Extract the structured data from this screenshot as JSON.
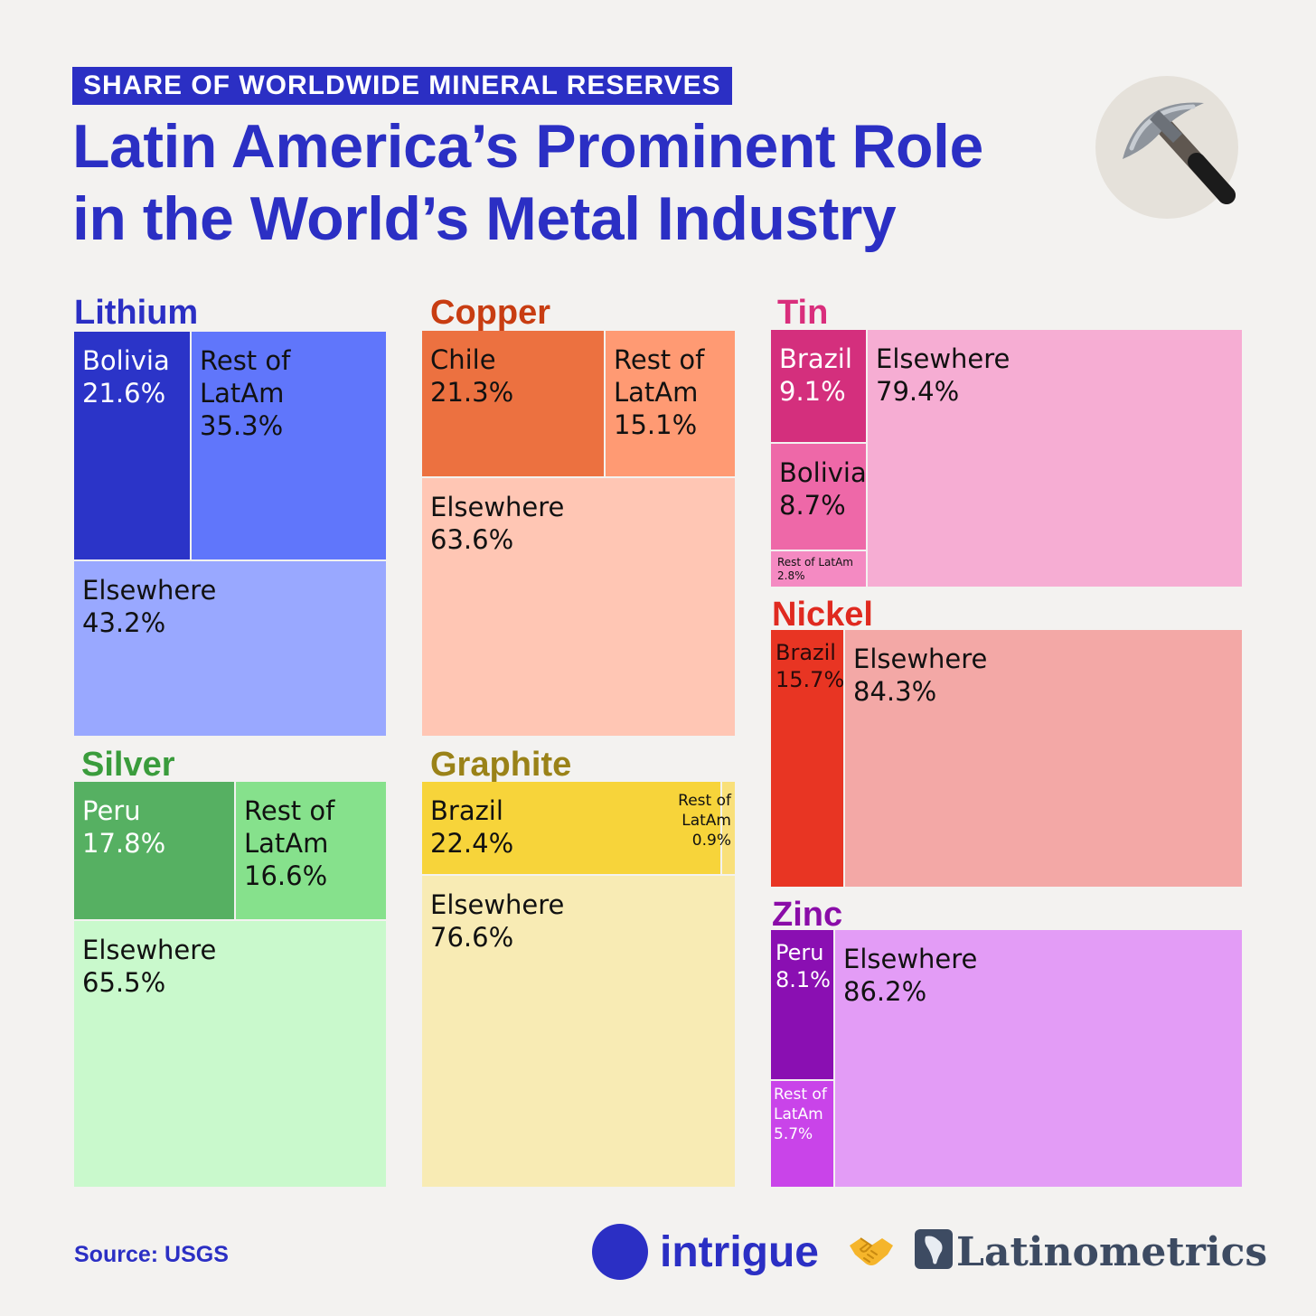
{
  "header": {
    "kicker": "SHARE OF WORLDWIDE MINERAL RESERVES",
    "title_line1": "Latin America’s Prominent Role",
    "title_line2": "in the World’s Metal Industry",
    "badge_icon": "pickaxe-icon"
  },
  "chart_data": [
    {
      "type": "treemap",
      "title": "Lithium",
      "title_color": "#2b2fc4",
      "cells": [
        {
          "label": "Bolivia",
          "value": 21.6,
          "display": "21.6%",
          "color": "#2b34c8"
        },
        {
          "label": "Rest of LatAm",
          "value": 35.3,
          "display": "35.3%",
          "color": "#6076fb"
        },
        {
          "label": "Elsewhere",
          "value": 43.2,
          "display": "43.2%",
          "color": "#99a8ff"
        }
      ]
    },
    {
      "type": "treemap",
      "title": "Copper",
      "title_color": "#c83d12",
      "cells": [
        {
          "label": "Chile",
          "value": 21.3,
          "display": "21.3%",
          "color": "#ec7140"
        },
        {
          "label": "Rest of LatAm",
          "value": 15.1,
          "display": "15.1%",
          "color": "#ff9a73"
        },
        {
          "label": "Elsewhere",
          "value": 63.6,
          "display": "63.6%",
          "color": "#ffc6b4"
        }
      ]
    },
    {
      "type": "treemap",
      "title": "Tin",
      "title_color": "#d92e7c",
      "cells": [
        {
          "label": "Brazil",
          "value": 9.1,
          "display": "9.1%",
          "color": "#d42f7d"
        },
        {
          "label": "Bolivia",
          "value": 8.7,
          "display": "8.7%",
          "color": "#ee68a8"
        },
        {
          "label": "Rest of LatAm",
          "value": 2.8,
          "display": "2.8%",
          "color": "#f48ac2"
        },
        {
          "label": "Elsewhere",
          "value": 79.4,
          "display": "79.4%",
          "color": "#f6add3"
        }
      ]
    },
    {
      "type": "treemap",
      "title": "Nickel",
      "title_color": "#e02a20",
      "cells": [
        {
          "label": "Brazil",
          "value": 15.7,
          "display": "15.7%",
          "color": "#e83523"
        },
        {
          "label": "Elsewhere",
          "value": 84.3,
          "display": "84.3%",
          "color": "#f3a8a6"
        }
      ]
    },
    {
      "type": "treemap",
      "title": "Silver",
      "title_color": "#3a9c3c",
      "cells": [
        {
          "label": "Peru",
          "value": 17.8,
          "display": "17.8%",
          "color": "#56b062"
        },
        {
          "label": "Rest of LatAm",
          "value": 16.6,
          "display": "16.6%",
          "color": "#86e18c"
        },
        {
          "label": "Elsewhere",
          "value": 65.5,
          "display": "65.5%",
          "color": "#c9f9cc"
        }
      ]
    },
    {
      "type": "treemap",
      "title": "Graphite",
      "title_color": "#9a8218",
      "cells": [
        {
          "label": "Brazil",
          "value": 22.4,
          "display": "22.4%",
          "color": "#f7d43a"
        },
        {
          "label": "Rest of LatAm",
          "value": 0.9,
          "display": "0.9%",
          "color": "#f9e07a"
        },
        {
          "label": "Elsewhere",
          "value": 76.6,
          "display": "76.6%",
          "color": "#f8ebb4"
        }
      ]
    },
    {
      "type": "treemap",
      "title": "Zinc",
      "title_color": "#8a0da8",
      "cells": [
        {
          "label": "Peru",
          "value": 8.1,
          "display": "8.1%",
          "color": "#8a0fb2"
        },
        {
          "label": "Rest of LatAm",
          "value": 5.7,
          "display": "5.7%",
          "color": "#c944e9"
        },
        {
          "label": "Elsewhere",
          "value": 86.2,
          "display": "86.2%",
          "color": "#e39cf6"
        }
      ]
    }
  ],
  "footer": {
    "source": "Source: USGS",
    "brand_a": "intrigue",
    "brand_a_icon": "circle-logo-icon",
    "separator_icon": "handshake-icon",
    "brand_b_icon": "latam-map-icon",
    "brand_b": "Latinometrics"
  }
}
